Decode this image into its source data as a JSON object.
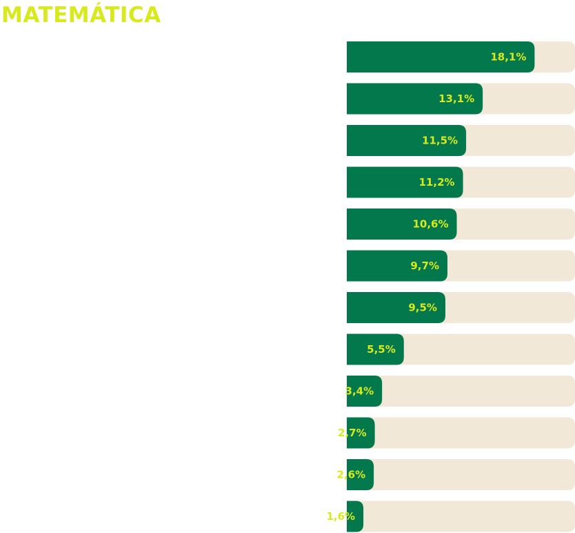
{
  "title": "MATEMÁTICA",
  "colors": {
    "title": "#d8ea1e",
    "bar": "#04784d",
    "track": "#f1e8d7",
    "label": "#d8ea1e"
  },
  "chart_data": {
    "type": "bar",
    "orientation": "horizontal",
    "title": "MATEMÁTICA",
    "values": [
      18.1,
      13.1,
      11.5,
      11.2,
      10.6,
      9.7,
      9.5,
      5.5,
      3.4,
      2.7,
      2.6,
      1.6
    ],
    "labels": [
      "18,1%",
      "13,1%",
      "11,5%",
      "11,2%",
      "10,6%",
      "9,7%",
      "9,5%",
      "5,5%",
      "3,4%",
      "2,7%",
      "2,6%",
      "1,6%"
    ],
    "xlim": [
      0,
      34
    ],
    "grid": false,
    "legend": "none"
  }
}
